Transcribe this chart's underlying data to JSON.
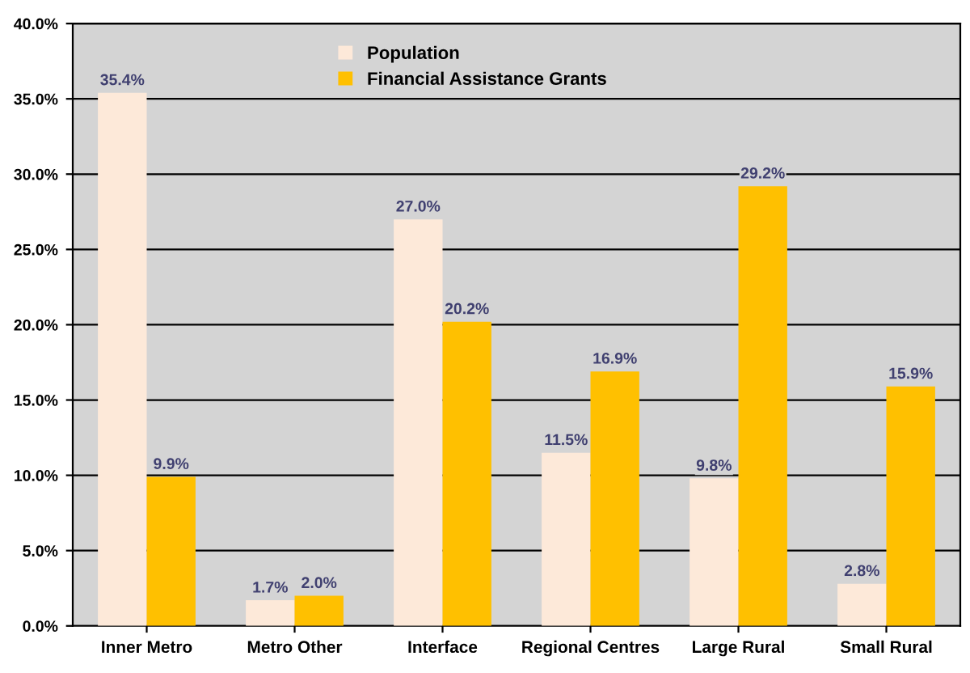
{
  "chart_data": {
    "type": "bar",
    "categories": [
      "Inner Metro",
      "Metro Other",
      "Interface",
      "Regional Centres",
      "Large Rural",
      "Small Rural"
    ],
    "series": [
      {
        "name": "Population",
        "color": "#fde9d9",
        "values": [
          35.4,
          1.7,
          27.0,
          11.5,
          9.8,
          2.8
        ],
        "value_labels": [
          "35.4%",
          "1.7%",
          "27.0%",
          "11.5%",
          "9.8%",
          "2.8%"
        ]
      },
      {
        "name": "Financial Assistance Grants",
        "color": "#ffc000",
        "values": [
          9.9,
          2.0,
          20.2,
          16.9,
          29.2,
          15.9
        ],
        "value_labels": [
          "9.9%",
          "2.0%",
          "20.2%",
          "16.9%",
          "29.2%",
          "15.9%"
        ]
      }
    ],
    "ylim": [
      0,
      40
    ],
    "yticks": [
      {
        "value": 0,
        "label": "0.0%"
      },
      {
        "value": 5,
        "label": "5.0%"
      },
      {
        "value": 10,
        "label": "10.0%"
      },
      {
        "value": 15,
        "label": "15.0%"
      },
      {
        "value": 20,
        "label": "20.0%"
      },
      {
        "value": 25,
        "label": "25.0%"
      },
      {
        "value": 30,
        "label": "30.0%"
      },
      {
        "value": 35,
        "label": "35.0%"
      },
      {
        "value": 40,
        "label": "40.0%"
      }
    ],
    "grid": "y",
    "legend": "top"
  }
}
